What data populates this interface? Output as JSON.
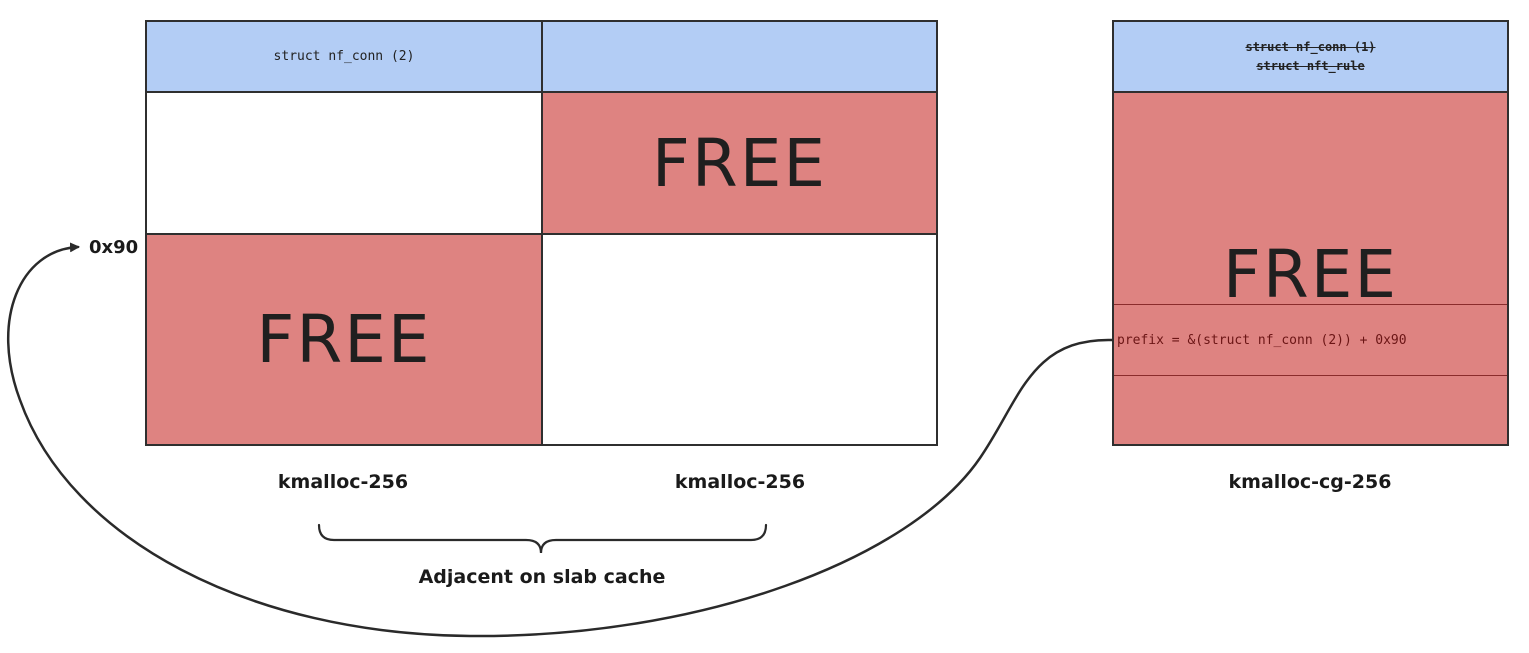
{
  "slab_left": {
    "header_label": "struct nf_conn (2)",
    "free_label": "FREE",
    "caption": "kmalloc-256"
  },
  "slab_middle": {
    "header_label": "",
    "free_label": "FREE",
    "caption": "kmalloc-256"
  },
  "slab_right": {
    "header_line1": "struct nf_conn (1)",
    "header_line2": "struct nft_rule",
    "free_label": "FREE",
    "prefix_text": "prefix = &(struct nf_conn (2)) + 0x90",
    "caption": "kmalloc-cg-256"
  },
  "offset_label": "0x90",
  "brace_caption": "Adjacent on slab cache",
  "colors": {
    "header_blue": "#b3cdf5",
    "free_red": "#de8381",
    "border": "#2f2f2f"
  }
}
